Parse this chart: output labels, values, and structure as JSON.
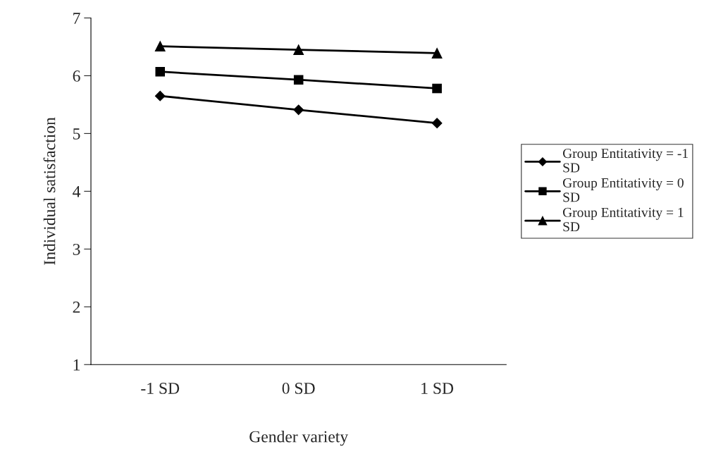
{
  "chart_data": {
    "type": "line",
    "xlabel": "Gender variety",
    "ylabel": "Individual satisfaction",
    "categories": [
      "-1 SD",
      "0 SD",
      "1 SD"
    ],
    "series": [
      {
        "name": "Group Entitativity = -1 SD",
        "color": "#000000",
        "marker": "diamond",
        "values": [
          5.65,
          5.41,
          5.18
        ]
      },
      {
        "name": "Group Entitativity = 0 SD",
        "color": "#000000",
        "marker": "square",
        "values": [
          6.07,
          5.93,
          5.78
        ]
      },
      {
        "name": "Group Entitativity = 1 SD",
        "color": "#000000",
        "marker": "triangle",
        "values": [
          6.51,
          6.45,
          6.39
        ]
      }
    ],
    "ylim": [
      1,
      7
    ],
    "yticks": [
      1,
      2,
      3,
      4,
      5,
      6,
      7
    ],
    "grid": false,
    "legend": "right",
    "line_style": "solid"
  }
}
